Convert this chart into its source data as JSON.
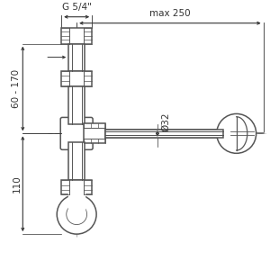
{
  "bg_color": "#ffffff",
  "line_color": "#555555",
  "dim_color": "#333333",
  "dashed_color": "#aaaaaa",
  "labels": {
    "g54": "G 5/4\"",
    "max250": "max 250",
    "dim32": "Ø32",
    "dim60_170": "60 - 170",
    "dim110": "110"
  },
  "figsize": [
    3.0,
    3.0
  ],
  "dpi": 100
}
